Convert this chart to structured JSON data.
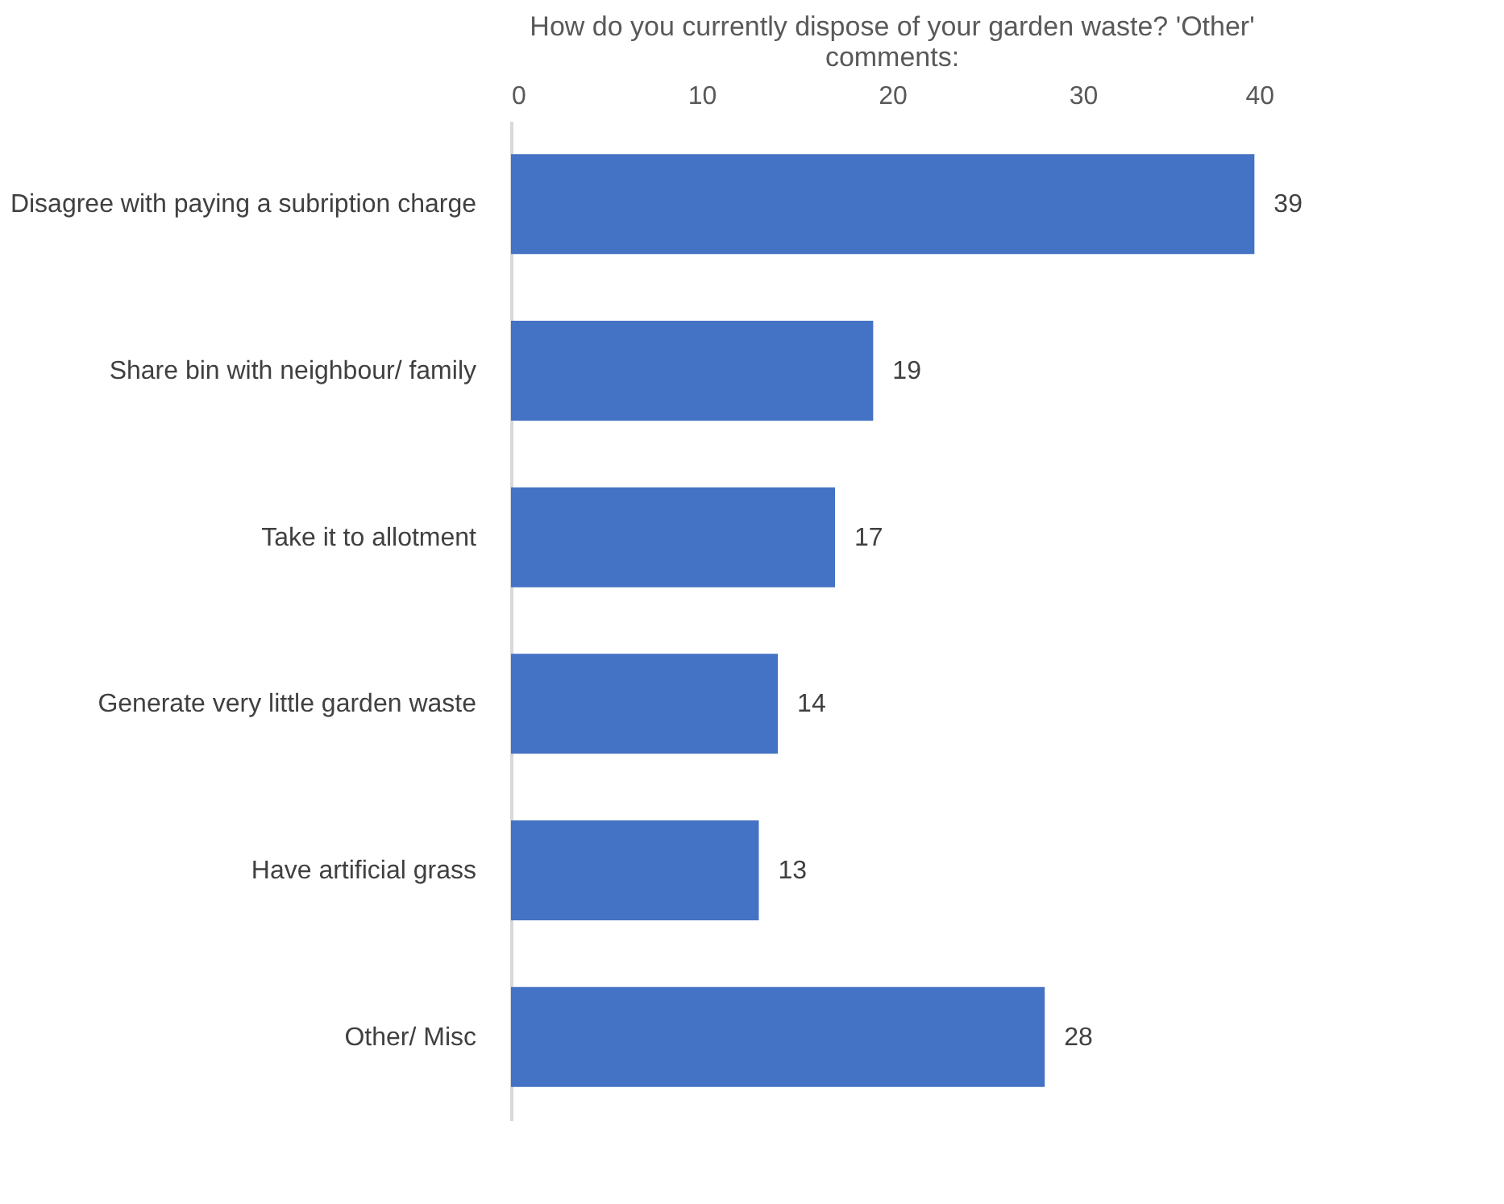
{
  "chart_data": {
    "type": "bar",
    "orientation": "horizontal",
    "title": "How do you currently dispose of your garden waste? 'Other' comments:",
    "categories": [
      "Disagree with paying a subription charge",
      "Share bin with neighbour/ family",
      "Take it to allotment",
      "Generate very little garden waste",
      "Have artificial grass",
      "Other/ Misc"
    ],
    "values": [
      39,
      19,
      17,
      14,
      13,
      28
    ],
    "color": "#4472c4",
    "xlim": [
      0,
      40
    ],
    "xticks": [
      0,
      10,
      20,
      30,
      40
    ],
    "data_labels": true,
    "grid": false
  }
}
